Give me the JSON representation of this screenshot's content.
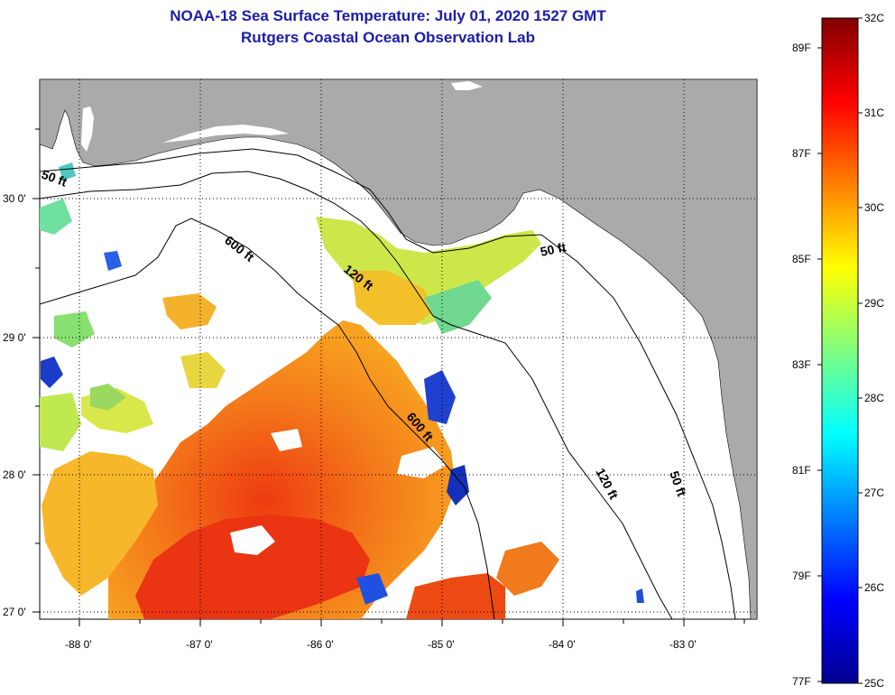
{
  "title": {
    "line1": "NOAA-18 Sea Surface Temperature:  July 01, 2020 1527 GMT",
    "line2": "Rutgers Coastal Ocean Observation Lab"
  },
  "map": {
    "lon_ticks": [
      "-88 0'",
      "-87 0'",
      "-86 0'",
      "-85 0'",
      "-84 0'",
      "-83 0'"
    ],
    "lat_ticks": [
      "30 0'",
      "29 0'",
      "28 0'",
      "27 0'"
    ],
    "contour_labels": {
      "c50_nw": "50 ft",
      "c600_top": "600 ft",
      "c120_mid": "120 ft",
      "c50_ne": "50 ft",
      "c600_low": "600 ft",
      "c120_low": "120 ft",
      "c50_se": "50 ft"
    },
    "colors": {
      "land": "#aaaaaa",
      "ocean": "#ffffff",
      "grid": "#000000"
    }
  },
  "colorbar": {
    "celsius_labels": [
      "32C",
      "31C",
      "30C",
      "29C",
      "28C",
      "27C",
      "26C",
      "25C"
    ],
    "fahrenheit_labels": [
      "89F",
      "87F",
      "85F",
      "83F",
      "81F",
      "79F",
      "77F"
    ],
    "range_c": [
      25,
      32
    ],
    "colormap": "jet"
  }
}
